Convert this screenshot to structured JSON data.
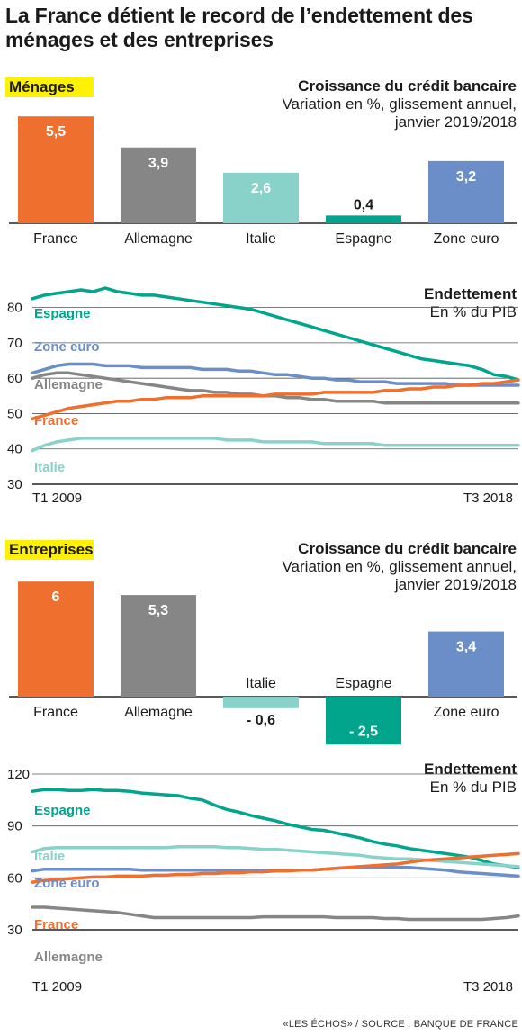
{
  "title": "La France détient le record de l’endettement des ménages et des entreprises",
  "footer": "«LES ÉCHOS» / SOURCE : BANQUE DE FRANCE",
  "colors": {
    "France": "#ef6f2e",
    "Allemagne": "#868686",
    "Italie": "#88d2c9",
    "Espagne": "#00a58b",
    "Zone euro": "#6b8ec9",
    "highlight": "#fff200"
  },
  "sections": [
    {
      "tag": "Ménages",
      "credit_title": "Croissance du crédit bancaire",
      "credit_sub1": "Variation en %, glissement annuel,",
      "credit_sub2": "janvier 2019/2018",
      "debt_title": "Endettement",
      "debt_sub": "En % du PIB",
      "x_start": "T1 2009",
      "x_end": "T3 2018"
    },
    {
      "tag": "Entreprises",
      "credit_title": "Croissance du crédit bancaire",
      "credit_sub1": "Variation en %, glissement annuel,",
      "credit_sub2": "janvier 2019/2018",
      "debt_title": "Endettement",
      "debt_sub": "En % du PIB",
      "x_start": "T1 2009",
      "x_end": "T3 2018"
    }
  ],
  "chart_data": [
    {
      "type": "bar",
      "title": "Croissance du crédit bancaire — Ménages",
      "categories": [
        "France",
        "Allemagne",
        "Italie",
        "Espagne",
        "Zone euro"
      ],
      "values": [
        5.5,
        3.9,
        2.6,
        0.4,
        3.2
      ],
      "value_labels": [
        "5,5",
        "3,9",
        "2,6",
        "0,4",
        "3,2"
      ]
    },
    {
      "type": "line",
      "title": "Endettement — Ménages",
      "ylabel": "En % du PIB",
      "ylim": [
        30,
        85
      ],
      "yticks": [
        30,
        40,
        50,
        60,
        70,
        80
      ],
      "x_range": [
        "T1 2009",
        "T3 2018"
      ],
      "series": [
        {
          "name": "Espagne",
          "values": [
            82.5,
            83.5,
            84,
            84.5,
            85,
            84.5,
            85.5,
            84.5,
            84,
            83.5,
            83.5,
            83,
            82.5,
            82,
            81.5,
            81,
            80.5,
            80,
            79.5,
            78.5,
            77.5,
            76.5,
            75.5,
            74.5,
            73.5,
            72.5,
            71.5,
            70.5,
            69.5,
            68.5,
            67.5,
            66.5,
            65.5,
            65,
            64.5,
            64,
            63.5,
            62.5,
            61,
            60.5,
            59.5
          ]
        },
        {
          "name": "Zone euro",
          "values": [
            61.5,
            62.5,
            63.5,
            64,
            64,
            64,
            63.5,
            63.5,
            63.5,
            63,
            63,
            63,
            63,
            63,
            62.5,
            62.5,
            62.5,
            62,
            62,
            61.5,
            61,
            61,
            60.5,
            60,
            60,
            59.5,
            59.5,
            59,
            59,
            59,
            58.5,
            58.5,
            58.5,
            58.5,
            58.5,
            58,
            58,
            58,
            58,
            58,
            58
          ]
        },
        {
          "name": "Allemagne",
          "values": [
            60,
            61,
            61.5,
            61.5,
            61,
            60.5,
            60,
            59.5,
            59,
            58.5,
            58,
            57.5,
            57,
            56.5,
            56.5,
            56,
            56,
            55.5,
            55.5,
            55,
            55,
            54.5,
            54.5,
            54,
            54,
            53.5,
            53.5,
            53.5,
            53.5,
            53,
            53,
            53,
            53,
            53,
            53,
            53,
            53,
            53,
            53,
            53,
            53
          ]
        },
        {
          "name": "France",
          "values": [
            48.5,
            49.5,
            50.5,
            51.5,
            52,
            52.5,
            53,
            53.5,
            53.5,
            54,
            54,
            54.5,
            54.5,
            54.5,
            55,
            55,
            55,
            55,
            55,
            55,
            55.5,
            55.5,
            55.5,
            55.5,
            56,
            56,
            56,
            56,
            56,
            56.5,
            56.5,
            57,
            57,
            57.5,
            57.5,
            58,
            58,
            58.5,
            58.5,
            59,
            59.5
          ]
        },
        {
          "name": "Italie",
          "values": [
            39.5,
            41,
            42,
            42.5,
            43,
            43,
            43,
            43,
            43,
            43,
            43,
            43,
            43,
            43,
            43,
            43,
            42.5,
            42.5,
            42.5,
            42,
            42,
            42,
            42,
            42,
            41.5,
            41.5,
            41.5,
            41.5,
            41.5,
            41,
            41,
            41,
            41,
            41,
            41,
            41,
            41,
            41,
            41,
            41,
            41
          ]
        }
      ]
    },
    {
      "type": "bar",
      "title": "Croissance du crédit bancaire — Entreprises",
      "categories": [
        "France",
        "Allemagne",
        "Italie",
        "Espagne",
        "Zone euro"
      ],
      "values": [
        6,
        5.3,
        -0.6,
        -2.5,
        3.4
      ],
      "value_labels": [
        "6",
        "5,3",
        "- 0,6",
        "- 2,5",
        "3,4"
      ]
    },
    {
      "type": "line",
      "title": "Endettement — Entreprises",
      "ylabel": "En % du PIB",
      "ylim": [
        30,
        120
      ],
      "yticks": [
        30,
        60,
        90,
        120
      ],
      "x_range": [
        "T1 2009",
        "T3 2018"
      ],
      "series": [
        {
          "name": "Espagne",
          "values": [
            110,
            111,
            111,
            110.5,
            110.5,
            111,
            110.5,
            110.5,
            110,
            109,
            108.5,
            108,
            107.5,
            106,
            105,
            102,
            99.5,
            98,
            96,
            94.5,
            93,
            91,
            89.5,
            88,
            87.5,
            86,
            84.5,
            83,
            81,
            79.5,
            78.5,
            77,
            76,
            75,
            74,
            73,
            72,
            70,
            68,
            67,
            66
          ]
        },
        {
          "name": "Italie",
          "values": [
            75,
            77,
            77.5,
            77.5,
            77.5,
            77.5,
            77.5,
            77.5,
            77.5,
            77.5,
            77.5,
            77.5,
            78,
            78,
            78,
            78,
            77.5,
            77.5,
            77,
            76.5,
            76.5,
            76,
            75.5,
            75,
            74.5,
            74,
            73.5,
            73,
            72,
            71.5,
            71,
            71,
            70.5,
            70,
            69.5,
            69,
            68.5,
            68,
            67.5,
            67,
            66.5
          ]
        },
        {
          "name": "Zone euro",
          "values": [
            64,
            65,
            65,
            65,
            65,
            65,
            65,
            65,
            65,
            64.5,
            64.5,
            64.5,
            64.5,
            64.5,
            64.5,
            64.5,
            64.5,
            64.5,
            64.5,
            64.5,
            64.5,
            64.5,
            64.5,
            64.5,
            65,
            65.5,
            66,
            66,
            66,
            66,
            66,
            66,
            65.5,
            65,
            64.5,
            63.5,
            63,
            62.5,
            62,
            61.5,
            61
          ]
        },
        {
          "name": "France",
          "values": [
            57.5,
            58.5,
            59,
            59.5,
            60,
            60.5,
            60.5,
            61,
            61,
            61,
            61.5,
            61.5,
            62,
            62,
            62.5,
            62.5,
            63,
            63,
            63.5,
            63.5,
            64,
            64,
            64.5,
            64.5,
            65,
            65.5,
            66,
            66.5,
            67,
            67.5,
            68,
            69,
            70,
            70.5,
            71,
            71.5,
            72,
            72.5,
            73,
            73.5,
            74
          ]
        },
        {
          "name": "Allemagne",
          "values": [
            43,
            43,
            42.5,
            42,
            41.5,
            41,
            40.5,
            40,
            39,
            38,
            37,
            37,
            37,
            37,
            37,
            37,
            37,
            37,
            37,
            37.5,
            37.5,
            37.5,
            37.5,
            37.5,
            37.5,
            37,
            37,
            37,
            37,
            36.5,
            36.5,
            36,
            36,
            36,
            36,
            36,
            36,
            36,
            36.5,
            37,
            38
          ]
        }
      ]
    }
  ]
}
